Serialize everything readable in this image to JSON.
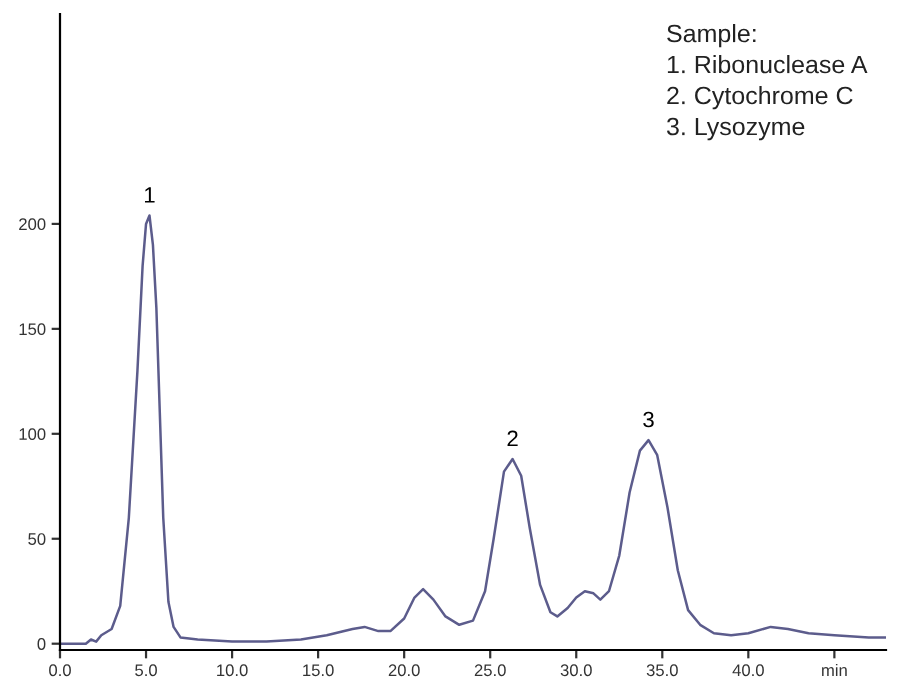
{
  "chart_data": {
    "type": "line",
    "x": [
      0,
      1.0,
      1.5,
      1.8,
      2.1,
      2.4,
      3.0,
      3.5,
      4.0,
      4.5,
      4.8,
      5.0,
      5.2,
      5.4,
      5.6,
      5.8,
      6.0,
      6.3,
      6.6,
      7.0,
      8.0,
      10.0,
      12.0,
      14.0,
      15.5,
      17.0,
      17.7,
      18.5,
      19.2,
      20.0,
      20.6,
      21.1,
      21.7,
      22.4,
      23.2,
      24.0,
      24.7,
      25.2,
      25.8,
      26.3,
      26.8,
      27.3,
      27.9,
      28.5,
      28.9,
      29.5,
      30.0,
      30.5,
      31.0,
      31.4,
      31.9,
      32.5,
      33.1,
      33.7,
      34.2,
      34.7,
      35.3,
      35.9,
      36.5,
      37.2,
      38.0,
      39.0,
      40.0,
      41.3,
      42.3,
      43.5,
      45.0,
      47.0,
      48.0
    ],
    "values": [
      0,
      0,
      0,
      2,
      1,
      4,
      7,
      18,
      60,
      130,
      180,
      200,
      204,
      190,
      160,
      110,
      60,
      20,
      8,
      3,
      2,
      1,
      1,
      2,
      4,
      7,
      8,
      6,
      6,
      12,
      22,
      26,
      21,
      13,
      9,
      11,
      25,
      50,
      82,
      88,
      80,
      55,
      28,
      15,
      13,
      17,
      22,
      25,
      24,
      21,
      25,
      42,
      72,
      92,
      97,
      90,
      65,
      35,
      16,
      9,
      5,
      4,
      5,
      8,
      7,
      5,
      4,
      3,
      3
    ],
    "color": "#5c5c8c",
    "xlim": [
      0,
      48
    ],
    "ylim": [
      -3,
      300
    ],
    "xticks": [
      {
        "value": 0,
        "label": "0.0"
      },
      {
        "value": 5,
        "label": "5.0"
      },
      {
        "value": 10,
        "label": "10.0"
      },
      {
        "value": 15,
        "label": "15.0"
      },
      {
        "value": 20,
        "label": "20.0"
      },
      {
        "value": 25,
        "label": "25.0"
      },
      {
        "value": 30,
        "label": "30.0"
      },
      {
        "value": 35,
        "label": "35.0"
      },
      {
        "value": 40,
        "label": "40.0"
      },
      {
        "value": 45,
        "label": "min"
      }
    ],
    "yticks": [
      0,
      50,
      100,
      150,
      200
    ],
    "grid": false,
    "legend": false,
    "marker": "none",
    "line_style": "solid",
    "annotations": [
      {
        "text": "1",
        "x": 5.2,
        "y": 204
      },
      {
        "text": "2",
        "x": 26.3,
        "y": 88
      },
      {
        "text": "3",
        "x": 34.2,
        "y": 97
      },
      "Sample:",
      "1. Ribonuclease A",
      "2. Cytochrome C",
      "3. Lysozyme"
    ]
  }
}
